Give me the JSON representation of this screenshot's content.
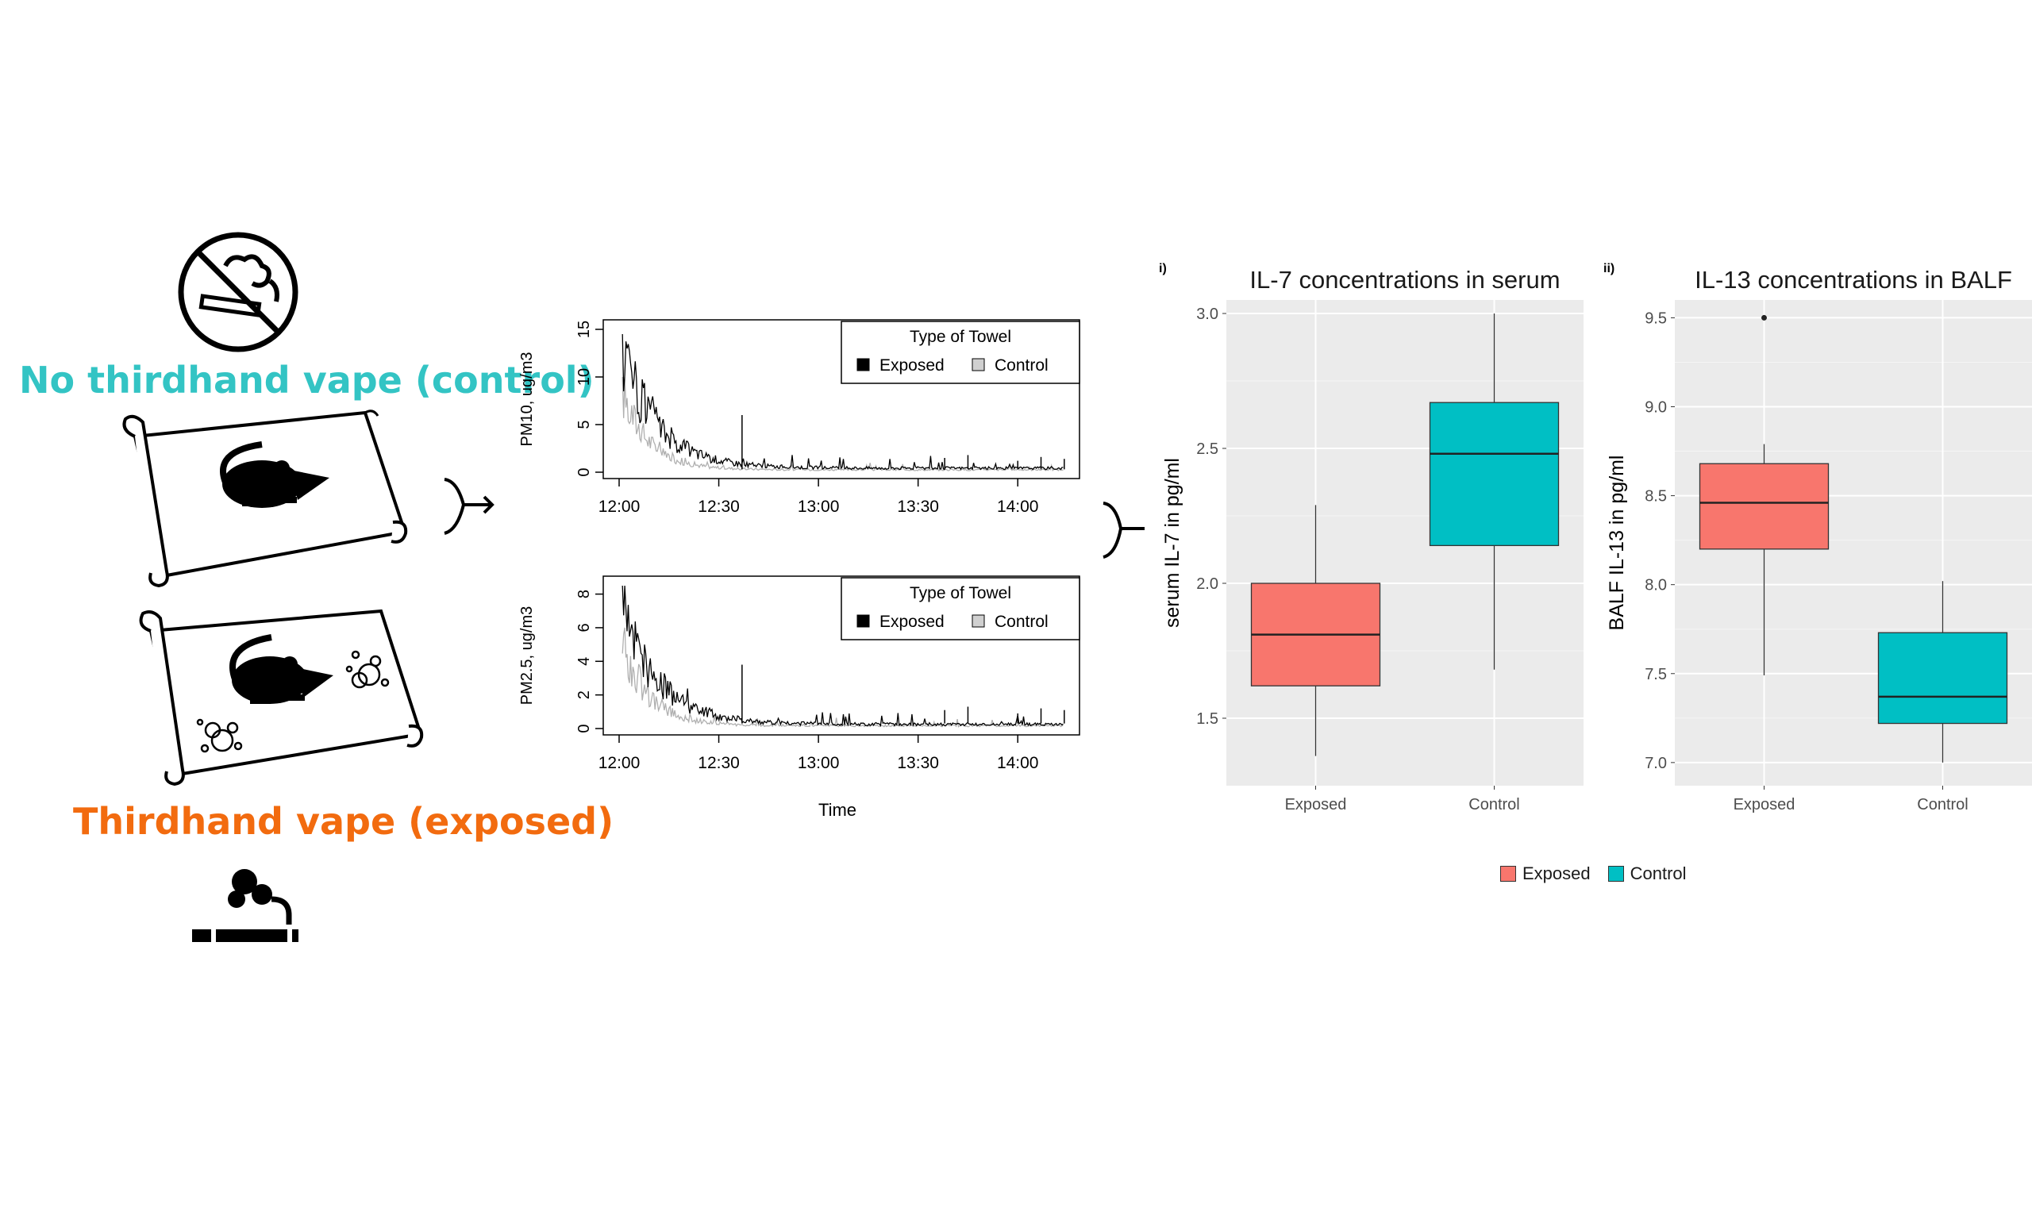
{
  "left_panel": {
    "control_label": "No thirdhand vape (control)",
    "exposed_label": "Thirdhand vape (exposed)",
    "control_color": "#33c4c4",
    "exposed_color": "#f26b0f",
    "icons": [
      "no-smoking-icon",
      "mouse-on-towel-icon",
      "mouse-on-towel-with-vapor-icon",
      "vaping-icon",
      "arrow-icon"
    ]
  },
  "chart_data": [
    {
      "type": "line",
      "ylabel": "PM10, ug/m3",
      "xlabel": "",
      "x_ticks": [
        "12:00",
        "12:30",
        "13:00",
        "13:30",
        "14:00"
      ],
      "y_ticks": [
        0,
        5,
        10,
        15
      ],
      "ylim": [
        0,
        15
      ],
      "xlim": [
        "12:00",
        "14:15"
      ],
      "legend": {
        "title": "Type of Towel",
        "placement": "top-right",
        "entries": [
          "Exposed",
          "Control"
        ]
      },
      "series": [
        {
          "name": "Exposed",
          "color": "#000000",
          "peak": 14.5,
          "decay_minutes": 11,
          "baseline": 0.5,
          "spikes": [
            {
              "x": "12:37",
              "y": 6
            },
            {
              "x": "13:38",
              "y": 1.5
            },
            {
              "x": "13:45",
              "y": 1.8
            },
            {
              "x": "14:00",
              "y": 1.2
            },
            {
              "x": "14:07",
              "y": 1.6
            },
            {
              "x": "14:14",
              "y": 1.4
            }
          ]
        },
        {
          "name": "Control",
          "color": "#b0b0b0",
          "peak": 10,
          "decay_minutes": 8,
          "baseline": 0.3
        }
      ]
    },
    {
      "type": "line",
      "ylabel": "PM2.5, ug/m3",
      "xlabel": "Time",
      "x_ticks": [
        "12:00",
        "12:30",
        "13:00",
        "13:30",
        "14:00"
      ],
      "y_ticks": [
        0,
        2,
        4,
        6,
        8
      ],
      "ylim": [
        0,
        8.5
      ],
      "xlim": [
        "12:00",
        "14:15"
      ],
      "legend": {
        "title": "Type of Towel",
        "placement": "top-right",
        "entries": [
          "Exposed",
          "Control"
        ]
      },
      "series": [
        {
          "name": "Exposed",
          "color": "#000000",
          "peak": 8.5,
          "decay_minutes": 11,
          "baseline": 0.3,
          "spikes": [
            {
              "x": "12:37",
              "y": 3.8
            },
            {
              "x": "13:38",
              "y": 1.1
            },
            {
              "x": "13:45",
              "y": 1.3
            },
            {
              "x": "14:00",
              "y": 0.9
            },
            {
              "x": "14:07",
              "y": 1.2
            },
            {
              "x": "14:14",
              "y": 1.1
            }
          ]
        },
        {
          "name": "Control",
          "color": "#b0b0b0",
          "peak": 6,
          "decay_minutes": 8,
          "baseline": 0.2
        }
      ]
    },
    {
      "type": "box",
      "panel_label": "i)",
      "title": "IL-7 concentrations in serum",
      "ylabel": "serum IL-7 in pg/ml",
      "categories": [
        "Exposed",
        "Control"
      ],
      "y_ticks": [
        1.5,
        2.0,
        2.5,
        3.0
      ],
      "ylim": [
        1.25,
        3.05
      ],
      "boxes": [
        {
          "name": "Exposed",
          "color": "#f8766d",
          "min": 1.36,
          "q1": 1.62,
          "median": 1.81,
          "q3": 2.0,
          "max": 2.29,
          "outliers": []
        },
        {
          "name": "Control",
          "color": "#00bfc4",
          "min": 1.68,
          "q1": 2.14,
          "median": 2.48,
          "q3": 2.67,
          "max": 3.0,
          "outliers": []
        }
      ]
    },
    {
      "type": "box",
      "panel_label": "ii)",
      "title": "IL-13 concentrations in BALF",
      "ylabel": "BALF IL-13 in pg/ml",
      "categories": [
        "Exposed",
        "Control"
      ],
      "y_ticks": [
        7.0,
        7.5,
        8.0,
        8.5,
        9.0,
        9.5
      ],
      "ylim": [
        6.87,
        9.6
      ],
      "boxes": [
        {
          "name": "Exposed",
          "color": "#f8766d",
          "min": 7.49,
          "q1": 8.2,
          "median": 8.46,
          "q3": 8.68,
          "max": 8.79,
          "outliers": [
            9.5
          ]
        },
        {
          "name": "Control",
          "color": "#00bfc4",
          "min": 7.0,
          "q1": 7.22,
          "median": 7.37,
          "q3": 7.73,
          "max": 8.02,
          "outliers": []
        }
      ]
    }
  ],
  "box_legend": {
    "entries": [
      "Exposed",
      "Control"
    ]
  }
}
